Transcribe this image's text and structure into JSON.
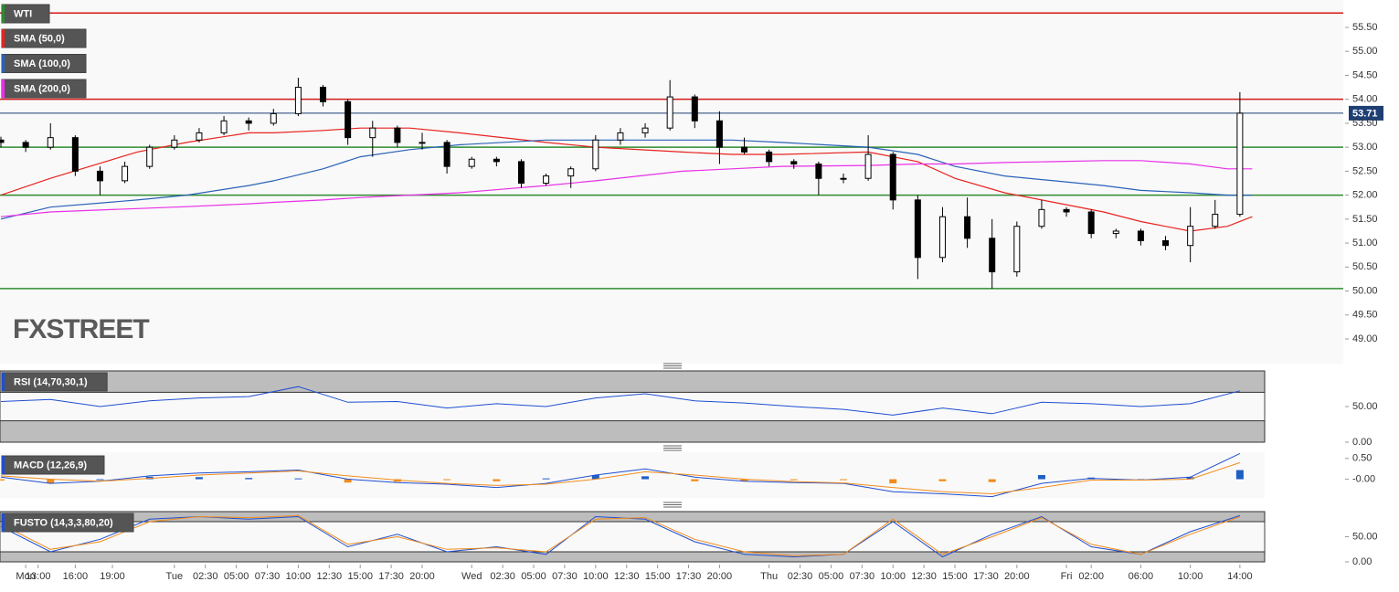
{
  "chart_data": [
    {
      "type": "candlestick",
      "title": "WTI",
      "title_color": "#2e8b2e",
      "x": [
        -2,
        0,
        2,
        4,
        6,
        8,
        10,
        12,
        14,
        16,
        18,
        20,
        22,
        24,
        26,
        28,
        30,
        32,
        34,
        36,
        38,
        40,
        42,
        44,
        46,
        48,
        50,
        52,
        54,
        56,
        58,
        60,
        62,
        64,
        66,
        68,
        70,
        72,
        74,
        76,
        78,
        80,
        82,
        84,
        86,
        88,
        90,
        92,
        94,
        96,
        98
      ],
      "candles": [
        [
          53.15,
          53.22,
          53.0,
          53.1
        ],
        [
          53.1,
          53.15,
          52.9,
          53.0
        ],
        [
          53.0,
          53.5,
          52.95,
          53.2
        ],
        [
          53.2,
          53.25,
          52.4,
          52.5
        ],
        [
          52.5,
          52.6,
          52.0,
          52.3
        ],
        [
          52.3,
          52.7,
          52.25,
          52.6
        ],
        [
          52.6,
          53.05,
          52.55,
          53.0
        ],
        [
          53.0,
          53.25,
          52.95,
          53.15
        ],
        [
          53.15,
          53.4,
          53.1,
          53.3
        ],
        [
          53.3,
          53.65,
          53.25,
          53.55
        ],
        [
          53.55,
          53.62,
          53.35,
          53.5
        ],
        [
          53.5,
          53.8,
          53.45,
          53.7
        ],
        [
          53.7,
          54.45,
          53.65,
          54.25
        ],
        [
          54.25,
          54.3,
          53.85,
          53.95
        ],
        [
          53.95,
          54.0,
          53.05,
          53.2
        ],
        [
          53.2,
          53.55,
          52.8,
          53.4
        ],
        [
          53.4,
          53.45,
          53.0,
          53.1
        ],
        [
          53.1,
          53.3,
          52.95,
          53.1
        ],
        [
          53.1,
          53.15,
          52.45,
          52.6
        ],
        [
          52.6,
          52.8,
          52.55,
          52.75
        ],
        [
          52.75,
          52.8,
          52.6,
          52.7
        ],
        [
          52.7,
          52.75,
          52.15,
          52.25
        ],
        [
          52.25,
          52.45,
          52.2,
          52.4
        ],
        [
          52.4,
          52.6,
          52.15,
          52.55
        ],
        [
          52.55,
          53.25,
          52.5,
          53.15
        ],
        [
          53.15,
          53.4,
          53.05,
          53.3
        ],
        [
          53.3,
          53.5,
          53.2,
          53.4
        ],
        [
          53.4,
          54.4,
          53.35,
          54.05
        ],
        [
          54.05,
          54.1,
          53.4,
          53.55
        ],
        [
          53.55,
          53.75,
          52.65,
          53.0
        ],
        [
          53.0,
          53.2,
          52.85,
          52.9
        ],
        [
          52.9,
          52.95,
          52.6,
          52.7
        ],
        [
          52.7,
          52.75,
          52.55,
          52.65
        ],
        [
          52.65,
          52.7,
          52.0,
          52.35
        ],
        [
          52.35,
          52.45,
          52.25,
          52.35
        ],
        [
          52.35,
          53.25,
          52.3,
          52.85
        ],
        [
          52.85,
          52.9,
          51.7,
          51.9
        ],
        [
          51.9,
          52.0,
          50.25,
          50.7
        ],
        [
          50.7,
          51.75,
          50.6,
          51.55
        ],
        [
          51.55,
          51.95,
          50.9,
          51.1
        ],
        [
          51.1,
          51.5,
          50.05,
          50.4
        ],
        [
          50.4,
          51.45,
          50.3,
          51.35
        ],
        [
          51.35,
          51.9,
          51.3,
          51.7
        ],
        [
          51.7,
          51.75,
          51.55,
          51.65
        ],
        [
          51.65,
          51.7,
          51.1,
          51.2
        ],
        [
          51.2,
          51.3,
          51.1,
          51.25
        ],
        [
          51.25,
          51.3,
          50.95,
          51.05
        ],
        [
          51.05,
          51.15,
          50.85,
          50.95
        ],
        [
          50.95,
          51.75,
          50.6,
          51.35
        ],
        [
          51.35,
          51.9,
          51.3,
          51.6
        ],
        [
          51.6,
          54.15,
          51.55,
          53.71
        ]
      ],
      "up_color": "#ffffff",
      "down_color": "#000000",
      "overlays": [
        {
          "name": "SMA (50,0)",
          "color": "#e8231f",
          "x": [
            -2,
            2,
            9,
            13,
            18,
            20,
            24,
            27,
            31,
            35,
            42,
            46,
            53,
            57,
            61,
            68,
            72,
            75,
            79,
            83,
            87,
            90,
            94,
            97,
            99
          ],
          "values": [
            52.0,
            52.35,
            52.9,
            53.1,
            53.3,
            53.3,
            53.35,
            53.4,
            53.4,
            53.3,
            53.1,
            53.0,
            52.9,
            52.85,
            52.85,
            52.9,
            52.7,
            52.35,
            52.05,
            51.85,
            51.65,
            51.45,
            51.25,
            51.35,
            51.55
          ]
        },
        {
          "name": "SMA (100,0)",
          "color": "#2a62b8",
          "x": [
            -2,
            2,
            9,
            13,
            18,
            20,
            24,
            27,
            31,
            35,
            42,
            46,
            53,
            57,
            61,
            68,
            72,
            75,
            79,
            83,
            87,
            90,
            94,
            97,
            99
          ],
          "values": [
            51.5,
            51.75,
            51.9,
            52.0,
            52.2,
            52.3,
            52.55,
            52.8,
            52.95,
            53.05,
            53.15,
            53.15,
            53.15,
            53.15,
            53.1,
            53.0,
            52.85,
            52.6,
            52.4,
            52.3,
            52.2,
            52.1,
            52.05,
            52.0,
            52.0
          ]
        },
        {
          "name": "SMA (200,0)",
          "color": "#e830e8",
          "x": [
            -2,
            2,
            9,
            13,
            18,
            20,
            24,
            27,
            31,
            35,
            42,
            46,
            53,
            57,
            61,
            68,
            72,
            75,
            79,
            83,
            87,
            90,
            94,
            97,
            99
          ],
          "values": [
            51.55,
            51.65,
            51.72,
            51.76,
            51.82,
            51.85,
            51.9,
            51.95,
            52.0,
            52.05,
            52.2,
            52.3,
            52.5,
            52.55,
            52.6,
            52.62,
            52.65,
            52.65,
            52.68,
            52.7,
            52.72,
            52.72,
            52.65,
            52.55,
            52.55
          ]
        }
      ],
      "levels": [
        {
          "value": 55.8,
          "color": "#d11a1a"
        },
        {
          "value": 54.0,
          "color": "#d11a1a"
        },
        {
          "value": 53.0,
          "color": "#2e8b2e"
        },
        {
          "value": 52.0,
          "color": "#2e8b2e"
        },
        {
          "value": 50.05,
          "color": "#2e8b2e"
        }
      ],
      "last": {
        "value": 53.71,
        "color": "#1d3f73"
      },
      "watermark": "FXSTREET",
      "xlim": [
        -2,
        100
      ],
      "xticks": [
        {
          "value": 0,
          "label": "Mon"
        },
        {
          "value": 1,
          "label": "13:00"
        },
        {
          "value": 4,
          "label": "16:00"
        },
        {
          "value": 7,
          "label": "19:00"
        },
        {
          "value": 12,
          "label": "Tue"
        },
        {
          "value": 14.5,
          "label": "02:30"
        },
        {
          "value": 17,
          "label": "05:00"
        },
        {
          "value": 19.5,
          "label": "07:30"
        },
        {
          "value": 22,
          "label": "10:00"
        },
        {
          "value": 24.5,
          "label": "12:30"
        },
        {
          "value": 27,
          "label": "15:00"
        },
        {
          "value": 29.5,
          "label": "17:30"
        },
        {
          "value": 32,
          "label": "20:00"
        },
        {
          "value": 36,
          "label": "Wed"
        },
        {
          "value": 38.5,
          "label": "02:30"
        },
        {
          "value": 41,
          "label": "05:00"
        },
        {
          "value": 43.5,
          "label": "07:30"
        },
        {
          "value": 46,
          "label": "10:00"
        },
        {
          "value": 48.5,
          "label": "12:30"
        },
        {
          "value": 51,
          "label": "15:00"
        },
        {
          "value": 53.5,
          "label": "17:30"
        },
        {
          "value": 56,
          "label": "20:00"
        },
        {
          "value": 60,
          "label": "Thu"
        },
        {
          "value": 62.5,
          "label": "02:30"
        },
        {
          "value": 65,
          "label": "05:00"
        },
        {
          "value": 67.5,
          "label": "07:30"
        },
        {
          "value": 70,
          "label": "10:00"
        },
        {
          "value": 72.5,
          "label": "12:30"
        },
        {
          "value": 75,
          "label": "15:00"
        },
        {
          "value": 77.5,
          "label": "17:30"
        },
        {
          "value": 80,
          "label": "20:00"
        },
        {
          "value": 84,
          "label": "Fri"
        },
        {
          "value": 86,
          "label": "02:00"
        },
        {
          "value": 90,
          "label": "06:00"
        },
        {
          "value": 94,
          "label": "10:00"
        },
        {
          "value": 98,
          "label": "14:00"
        }
      ],
      "ylim": [
        48.8,
        55.9
      ],
      "yticks": [
        {
          "value": 49,
          "label": "49.00"
        },
        {
          "value": 49.5,
          "label": "49.50"
        },
        {
          "value": 50,
          "label": "50.00"
        },
        {
          "value": 50.5,
          "label": "50.50"
        },
        {
          "value": 51,
          "label": "51.00"
        },
        {
          "value": 51.5,
          "label": "51.50"
        },
        {
          "value": 52,
          "label": "52.00"
        },
        {
          "value": 52.5,
          "label": "52.50"
        },
        {
          "value": 53,
          "label": "53.00"
        },
        {
          "value": 53.5,
          "label": "53.50"
        },
        {
          "value": 54,
          "label": "54.00"
        },
        {
          "value": 54.5,
          "label": "54.50"
        },
        {
          "value": 55,
          "label": "55.00"
        },
        {
          "value": 55.5,
          "label": "55.50"
        }
      ]
    },
    {
      "type": "line",
      "title": "RSI (14,70,30,1)",
      "bands": [
        70,
        30
      ],
      "series": [
        {
          "color": "#1f4fd1",
          "x": [
            -2,
            2,
            6,
            10,
            14,
            18,
            22,
            26,
            30,
            34,
            38,
            42,
            46,
            50,
            54,
            58,
            62,
            66,
            70,
            74,
            78,
            82,
            86,
            90,
            94,
            98
          ],
          "values": [
            57,
            60,
            50,
            58,
            62,
            64,
            78,
            56,
            57,
            48,
            54,
            50,
            62,
            68,
            58,
            55,
            50,
            46,
            38,
            48,
            40,
            56,
            54,
            50,
            54,
            72
          ]
        }
      ],
      "xlim": [
        -2,
        100
      ],
      "ylim": [
        0,
        100
      ],
      "yticks": [
        {
          "value": 0,
          "label": "0.00"
        },
        {
          "value": 50,
          "label": "50.00"
        }
      ]
    },
    {
      "type": "macd",
      "title": "MACD (12,26,9)",
      "up_color": "#1f5fc4",
      "down_color": "#f28c1c",
      "x": [
        -2,
        2,
        6,
        10,
        14,
        18,
        22,
        26,
        30,
        34,
        38,
        42,
        46,
        50,
        54,
        58,
        62,
        66,
        70,
        74,
        78,
        82,
        86,
        90,
        94,
        98
      ],
      "histogram": [
        -0.03,
        -0.1,
        0.0,
        0.06,
        0.05,
        0.03,
        0.02,
        -0.08,
        -0.06,
        -0.02,
        -0.05,
        0.02,
        0.1,
        0.07,
        -0.05,
        -0.05,
        -0.02,
        -0.01,
        -0.1,
        -0.05,
        -0.07,
        0.1,
        0.04,
        0.0,
        0.05,
        0.22
      ],
      "series": [
        {
          "color": "#1f4fd1",
          "values": [
            0.05,
            -0.1,
            -0.05,
            0.08,
            0.15,
            0.18,
            0.22,
            0.0,
            -0.08,
            -0.12,
            -0.2,
            -0.1,
            0.1,
            0.25,
            0.05,
            -0.05,
            -0.08,
            -0.1,
            -0.3,
            -0.35,
            -0.42,
            -0.1,
            0.02,
            -0.02,
            0.05,
            0.62
          ]
        },
        {
          "color": "#f28c1c",
          "values": [
            0.08,
            0.0,
            -0.05,
            0.02,
            0.1,
            0.15,
            0.2,
            0.08,
            -0.02,
            -0.1,
            -0.15,
            -0.12,
            0.0,
            0.18,
            0.1,
            0.0,
            -0.06,
            -0.09,
            -0.2,
            -0.3,
            -0.35,
            -0.2,
            -0.02,
            -0.02,
            0.0,
            0.4
          ]
        }
      ],
      "xlim": [
        -2,
        100
      ],
      "ylim": [
        -0.45,
        0.65
      ],
      "yticks": [
        {
          "value": 0,
          "label": "-0.00"
        },
        {
          "value": 0.5,
          "label": "0.50"
        }
      ]
    },
    {
      "type": "line",
      "title": "FUSTO (14,3,3,80,20)",
      "bands": [
        80,
        20
      ],
      "series": [
        {
          "color": "#1f4fd1",
          "x": [
            -2,
            2,
            6,
            10,
            14,
            18,
            22,
            26,
            30,
            34,
            38,
            42,
            46,
            50,
            54,
            58,
            62,
            66,
            70,
            74,
            78,
            82,
            86,
            90,
            94,
            98
          ],
          "values": [
            70,
            20,
            45,
            85,
            90,
            85,
            90,
            30,
            55,
            20,
            30,
            15,
            90,
            85,
            40,
            15,
            10,
            15,
            80,
            10,
            55,
            90,
            30,
            15,
            60,
            92
          ]
        },
        {
          "color": "#f28c1c",
          "x": [
            -2,
            2,
            6,
            10,
            14,
            18,
            22,
            26,
            30,
            34,
            38,
            42,
            46,
            50,
            54,
            58,
            62,
            66,
            70,
            74,
            78,
            82,
            86,
            90,
            94,
            98
          ],
          "values": [
            75,
            25,
            40,
            80,
            90,
            88,
            92,
            35,
            50,
            25,
            28,
            20,
            85,
            88,
            45,
            20,
            12,
            15,
            85,
            15,
            50,
            88,
            35,
            15,
            55,
            90
          ]
        }
      ],
      "xlim": [
        -2,
        100
      ],
      "ylim": [
        0,
        100
      ],
      "yticks": [
        {
          "value": 0,
          "label": "0.00"
        },
        {
          "value": 50,
          "label": "50.00"
        }
      ]
    }
  ]
}
